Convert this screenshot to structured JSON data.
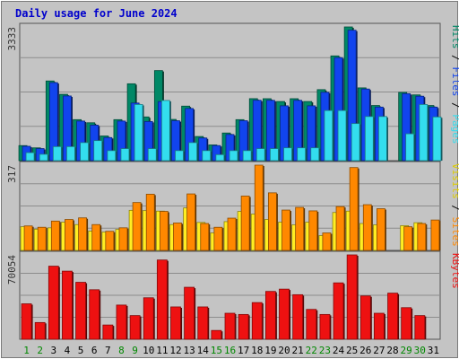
{
  "chart_data": {
    "type": "bar",
    "title": "Daily usage for June 2024",
    "categories": [
      "1",
      "2",
      "3",
      "4",
      "5",
      "6",
      "7",
      "8",
      "9",
      "10",
      "11",
      "12",
      "13",
      "14",
      "15",
      "16",
      "17",
      "18",
      "19",
      "20",
      "21",
      "22",
      "23",
      "24",
      "25",
      "26",
      "27",
      "28",
      "29",
      "30",
      "31"
    ],
    "weekend_days": [
      "1",
      "2",
      "8",
      "9",
      "15",
      "16",
      "22",
      "23",
      "29",
      "30"
    ],
    "colors": {
      "hits": "#008866",
      "files": "#1144ee",
      "pages": "#33ddee",
      "visits": "#ffee22",
      "sites": "#ff8800",
      "kbytes": "#ee1111",
      "weekday_tick": "#000000",
      "weekend_tick": "#008800",
      "title": "#0000cc"
    },
    "panels": [
      {
        "id": "hits-panel",
        "ymax_label": "3333",
        "ymax": 3333,
        "legend": [
          {
            "text": "Hits",
            "color": "#008866"
          },
          {
            "text": " / ",
            "color": "#000000"
          },
          {
            "text": "Files",
            "color": "#1144ee"
          },
          {
            "text": " / ",
            "color": "#000000"
          },
          {
            "text": "Pages",
            "color": "#33ddee"
          }
        ],
        "series": [
          {
            "name": "Hits",
            "color": "#008866",
            "values": [
              375,
              319,
              1986,
              1653,
              1022,
              944,
              615,
              1022,
              1916,
              1090,
              2245,
              1028,
              1359,
              602,
              392,
              689,
              1022,
              1545,
              1544,
              1474,
              1544,
              1474,
              1770,
              2611,
              3333,
              1814,
              1374,
              0,
              1701,
              1639,
              1374
            ]
          },
          {
            "name": "Files",
            "color": "#1144ee",
            "values": [
              358,
              301,
              1945,
              1612,
              986,
              885,
              575,
              986,
              1436,
              975,
              1472,
              995,
              1300,
              565,
              376,
              652,
              996,
              1505,
              1503,
              1367,
              1503,
              1367,
              1704,
              2568,
              3251,
              1785,
              1335,
              0,
              1670,
              1606,
              1335
            ]
          },
          {
            "name": "Pages",
            "color": "#33ddee",
            "values": [
              200,
              160,
              350,
              350,
              450,
              500,
              250,
              300,
              1400,
              300,
              1500,
              250,
              450,
              250,
              150,
              250,
              250,
              300,
              300,
              320,
              320,
              320,
              1250,
              1250,
              925,
              1100,
              1100,
              0,
              670,
              1400,
              1090
            ]
          }
        ]
      },
      {
        "id": "visits-panel",
        "ymax_label": "317",
        "ymax": 317,
        "legend": [
          {
            "text": "Visits",
            "color": "#ddcc00"
          },
          {
            "text": " / ",
            "color": "#000000"
          },
          {
            "text": "Sites",
            "color": "#ff8800"
          }
        ],
        "series": [
          {
            "name": "Visits",
            "color": "#ffee22",
            "values": [
              88,
              79,
              84,
              105,
              96,
              72,
              68,
              78,
              149,
              148,
              146,
              96,
              158,
              104,
              65,
              107,
              145,
              135,
              115,
              105,
              95,
              105,
              55,
              141,
              146,
              100,
              95,
              0,
              92,
              103,
              0
            ]
          },
          {
            "name": "Sites",
            "color": "#ff8800",
            "values": [
              91,
              86,
              109,
              115,
              121,
              96,
              71,
              84,
              178,
              209,
              145,
              102,
              210,
              100,
              86,
              120,
              202,
              317,
              214,
              150,
              160,
              147,
              65,
              163,
              308,
              170,
              155,
              0,
              88,
              100,
              113
            ]
          }
        ]
      },
      {
        "id": "kbytes-panel",
        "ymax_label": "70054",
        "ymax": 70054,
        "legend": [
          {
            "text": "KBytes",
            "color": "#ee1111"
          }
        ],
        "series": [
          {
            "name": "KBytes",
            "color": "#ee1111",
            "values": [
              29430,
              13900,
              60680,
              56560,
              47300,
              41120,
              11840,
              28400,
              19660,
              34450,
              65820,
              26860,
              43170,
              26860,
              7310,
              21600,
              20590,
              30470,
              39730,
              41630,
              37000,
              24790,
              20590,
              46830,
              70054,
              35990,
              21600,
              38300,
              26250,
              19660,
              0
            ]
          }
        ]
      }
    ]
  }
}
